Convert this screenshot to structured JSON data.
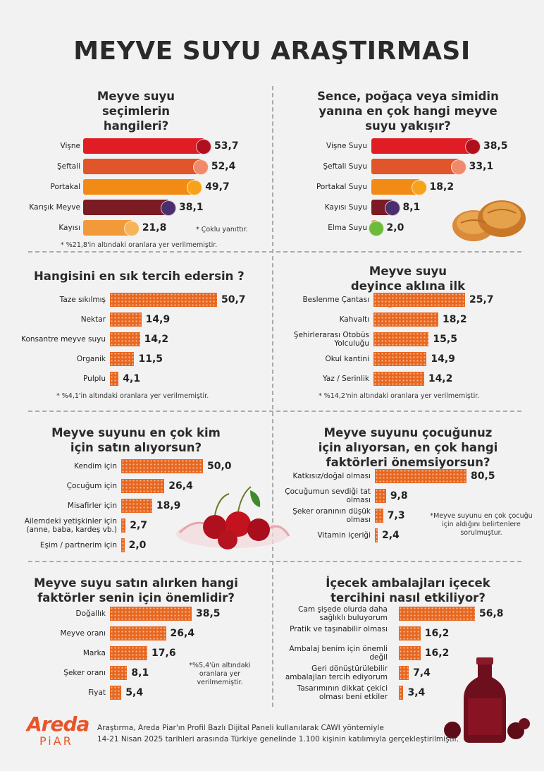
{
  "title": "MEYVE SUYU ARAŞTIRMASI",
  "chart_data": [
    {
      "type": "bar",
      "title": "Meyve suyu seçimlerin hangileri?",
      "categories": [
        "Vişne",
        "Şeftali",
        "Portakal",
        "Karışık Meyve",
        "Kayısı"
      ],
      "values": [
        53.7,
        52.4,
        49.7,
        38.1,
        21.8
      ],
      "value_labels": [
        "53,7",
        "52,4",
        "49,7",
        "38,1",
        "21,8"
      ],
      "colors": [
        "#e01c24",
        "#e0552a",
        "#f28a16",
        "#7b1c24",
        "#f29a3a"
      ],
      "icons": [
        "cherry-icon",
        "peach-icon",
        "orange-icon",
        "mixed-berry-icon",
        "apricot-icon"
      ],
      "notes": [
        "* Çoklu yanıttır.",
        "* %21,8'in altındaki oranlara yer verilmemiştir."
      ]
    },
    {
      "type": "bar",
      "title": "Sence, poğaça veya simidin yanına en çok hangi meyve suyu yakışır?",
      "categories": [
        "Vişne Suyu",
        "Şeftali Suyu",
        "Portakal Suyu",
        "Kayısı Suyu",
        "Elma Suyu"
      ],
      "values": [
        38.5,
        33.1,
        18.2,
        8.1,
        2.0
      ],
      "value_labels": [
        "38,5",
        "33,1",
        "18,2",
        "8,1",
        "2,0"
      ],
      "colors": [
        "#e01c24",
        "#e0552a",
        "#f28a16",
        "#7b1c24",
        "#f29a3a"
      ],
      "icons": [
        "cherry-icon",
        "peach-icon",
        "orange-icon",
        "mixed-berry-icon",
        "apple-icon"
      ]
    },
    {
      "type": "bar",
      "title": "Hangisini en sık tercih edersin ?",
      "categories": [
        "Taze sıkılmış",
        "Nektar",
        "Konsantre meyve suyu",
        "Organik",
        "Pulplu"
      ],
      "values": [
        50.7,
        14.9,
        14.2,
        11.5,
        4.1
      ],
      "value_labels": [
        "50,7",
        "14,9",
        "14,2",
        "11,5",
        "4,1"
      ],
      "notes": [
        "* %4,1'in altındaki oranlara yer verilmemiştir."
      ]
    },
    {
      "type": "bar",
      "title": "Meyve suyu deyince aklına ilk gelen?",
      "categories": [
        "Beslenme Çantası",
        "Kahvaltı",
        "Şehirlerarası Otobüs Yolculuğu",
        "Okul kantini",
        "Yaz / Serinlik"
      ],
      "values": [
        25.7,
        18.2,
        15.5,
        14.9,
        14.2
      ],
      "value_labels": [
        "25,7",
        "18,2",
        "15,5",
        "14,9",
        "14,2"
      ],
      "notes": [
        "* %14,2'nin altındaki oranlara yer verilmemiştir."
      ]
    },
    {
      "type": "bar",
      "title": "Meyve suyunu en çok kim için satın alıyorsun?",
      "categories": [
        "Kendim için",
        "Çocuğum için",
        "Misafirler için",
        "Ailemdeki yetişkinler için (anne, baba, kardeş vb.)",
        "Eşim / partnerim için"
      ],
      "values": [
        50.0,
        26.4,
        18.9,
        2.7,
        2.0
      ],
      "value_labels": [
        "50,0",
        "26,4",
        "18,9",
        "2,7",
        "2,0"
      ]
    },
    {
      "type": "bar",
      "title": "Meyve suyunu çocuğunuz için alıyorsan, en çok hangi faktörleri önemsiyorsun?",
      "categories": [
        "Katkısız/doğal olması",
        "Çocuğumun sevdiği tat olması",
        "Şeker oranının düşük olması",
        "Vitamin içeriği"
      ],
      "values": [
        80.5,
        9.8,
        7.3,
        2.4
      ],
      "value_labels": [
        "80,5",
        "9,8",
        "7,3",
        "2,4"
      ],
      "notes": [
        "*Meyve suyunu en çok çocuğu için aldığını belirtenlere sorulmuştur."
      ]
    },
    {
      "type": "bar",
      "title": "Meyve suyu satın alırken hangi faktörler senin için önemlidir?",
      "categories": [
        "Doğallık",
        "Meyve oranı",
        "Marka",
        "Şeker oranı",
        "Fiyat"
      ],
      "values": [
        38.5,
        26.4,
        17.6,
        8.1,
        5.4
      ],
      "value_labels": [
        "38,5",
        "26,4",
        "17,6",
        "8,1",
        "5,4"
      ],
      "notes": [
        "*%5,4'ün altındaki oranlara yer verilmemiştir."
      ]
    },
    {
      "type": "bar",
      "title": "İçecek ambalajları içecek tercihini nasıl etkiliyor?",
      "categories": [
        "Cam şişede olurda daha sağlıklı buluyorum",
        "Pratik ve taşınabilir olması",
        "Ambalaj benim için önemli değil",
        "Geri dönüştürülebilir ambalajları tercih ediyorum",
        "Tasarımının dikkat çekici olması beni etkiler"
      ],
      "values": [
        56.8,
        16.2,
        16.2,
        7.4,
        3.4
      ],
      "value_labels": [
        "56,8",
        "16,2",
        "16,2",
        "7,4",
        "3,4"
      ]
    }
  ],
  "footer": {
    "line1": "Araştırma, Areda Piar'ın Profil Bazlı Dijital Paneli kullanılarak CAWI yöntemiyle",
    "line2": "14-21 Nisan 2025 tarihleri arasında Türkiye genelinde 1.100 kişinin katılımıyla gerçekleştirilmiştir.",
    "logo_top": "Areda",
    "logo_bottom": "PiAR"
  }
}
